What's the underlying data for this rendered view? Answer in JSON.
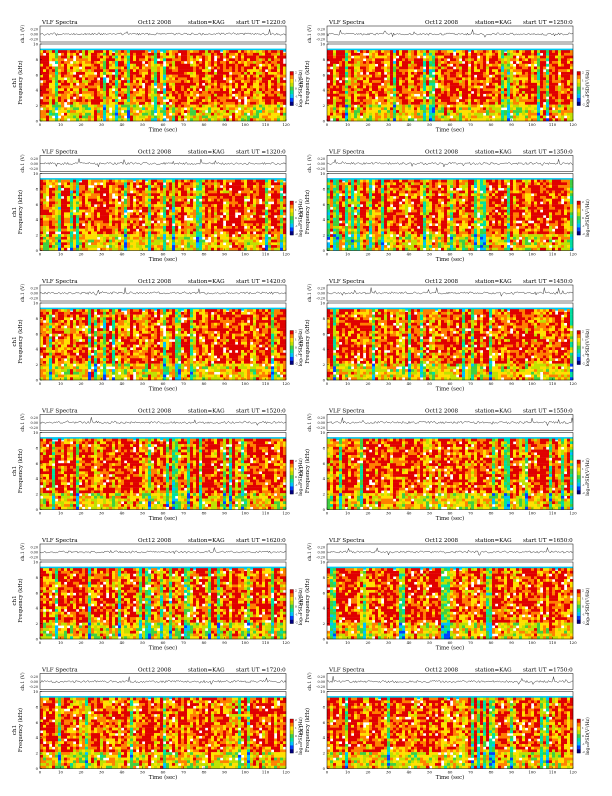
{
  "page_title": "VLF Spectra panels, KAG, Oct 12 2008",
  "colorscale": {
    "stops": [
      "#000080",
      "#0040ff",
      "#00c0ff",
      "#00e0a0",
      "#40d040",
      "#c0e000",
      "#ffe000",
      "#ff8000",
      "#e00000"
    ],
    "ticks": [
      "2",
      "1",
      "0",
      "-1",
      "-2"
    ],
    "label": "log₁₀PSD(V²/Hz)"
  },
  "chart_data": [
    {
      "type": "heatmap",
      "header": {
        "title": "VLF Spectra",
        "date": "Oct12 2008",
        "station": "station=KAG",
        "start": "start UT =1220:0"
      },
      "wave_label": "ch.1 (V)",
      "wave_yticks": [
        "0.20",
        "0.00",
        "-0.20"
      ],
      "ylabel": "Frequency (kHz)",
      "channel": "ch1",
      "xlabel": "Time (sec)",
      "xticks": [
        "0",
        "10",
        "20",
        "30",
        "40",
        "50",
        "60",
        "70",
        "80",
        "90",
        "100",
        "110",
        "120"
      ],
      "yticks": [
        "0",
        "2",
        "4",
        "6",
        "8",
        "10"
      ],
      "xlim": [
        0,
        120
      ],
      "ylim": [
        0,
        10
      ]
    },
    {
      "type": "heatmap",
      "header": {
        "title": "VLF Spectra",
        "date": "Oct12 2008",
        "station": "station=KAG",
        "start": "start UT =1250:0"
      },
      "wave_label": "ch.1 (V)",
      "wave_yticks": [
        "0.20",
        "0.00",
        "-0.20"
      ],
      "ylabel": "Frequency (kHz)",
      "channel": "ch1",
      "xlabel": "Time (sec)",
      "xticks": [
        "0",
        "10",
        "20",
        "30",
        "40",
        "50",
        "60",
        "70",
        "80",
        "90",
        "100",
        "110",
        "120"
      ],
      "yticks": [
        "0",
        "2",
        "4",
        "6",
        "8",
        "10"
      ],
      "xlim": [
        0,
        120
      ],
      "ylim": [
        0,
        10
      ]
    },
    {
      "type": "heatmap",
      "header": {
        "title": "VLF Spectra",
        "date": "Oct12 2008",
        "station": "station=KAG",
        "start": "start UT =1320:0"
      },
      "wave_label": "ch.1 (V)",
      "wave_yticks": [
        "0.20",
        "0.00",
        "-0.20"
      ],
      "ylabel": "Frequency (kHz)",
      "channel": "ch1",
      "xlabel": "Time (sec)",
      "xticks": [
        "0",
        "10",
        "20",
        "30",
        "40",
        "50",
        "60",
        "70",
        "80",
        "90",
        "100",
        "110",
        "120"
      ],
      "yticks": [
        "0",
        "2",
        "4",
        "6",
        "8",
        "10"
      ],
      "xlim": [
        0,
        120
      ],
      "ylim": [
        0,
        10
      ]
    },
    {
      "type": "heatmap",
      "header": {
        "title": "VLF Spectra",
        "date": "Oct12 2008",
        "station": "station=KAG",
        "start": "start UT =1350:0"
      },
      "wave_label": "ch.1 (V)",
      "wave_yticks": [
        "0.20",
        "0.00",
        "-0.20"
      ],
      "ylabel": "Frequency (kHz)",
      "channel": "ch1",
      "xlabel": "Time (sec)",
      "xticks": [
        "0",
        "10",
        "20",
        "30",
        "40",
        "50",
        "60",
        "70",
        "80",
        "90",
        "100",
        "110",
        "120"
      ],
      "yticks": [
        "0",
        "2",
        "4",
        "6",
        "8",
        "10"
      ],
      "xlim": [
        0,
        120
      ],
      "ylim": [
        0,
        10
      ]
    },
    {
      "type": "heatmap",
      "header": {
        "title": "VLF Spectra",
        "date": "Oct12 2008",
        "station": "station=KAG",
        "start": "start UT =1420:0"
      },
      "wave_label": "ch.1 (V)",
      "wave_yticks": [
        "0.20",
        "0.00",
        "-0.20"
      ],
      "ylabel": "Frequency (kHz)",
      "channel": "ch1",
      "xlabel": "Time (sec)",
      "xticks": [
        "0",
        "10",
        "20",
        "30",
        "40",
        "50",
        "60",
        "70",
        "80",
        "90",
        "100",
        "110",
        "120"
      ],
      "yticks": [
        "0",
        "2",
        "4",
        "6",
        "8",
        "10"
      ],
      "xlim": [
        0,
        120
      ],
      "ylim": [
        0,
        10
      ]
    },
    {
      "type": "heatmap",
      "header": {
        "title": "VLF Spectra",
        "date": "Oct12 2008",
        "station": "station=KAG",
        "start": "start UT =1450:0"
      },
      "wave_label": "ch.1 (V)",
      "wave_yticks": [
        "0.20",
        "0.00",
        "-0.20"
      ],
      "ylabel": "Frequency (kHz)",
      "channel": "ch1",
      "xlabel": "Time (sec)",
      "xticks": [
        "0",
        "10",
        "20",
        "30",
        "40",
        "50",
        "60",
        "70",
        "80",
        "90",
        "100",
        "110",
        "120"
      ],
      "yticks": [
        "0",
        "2",
        "4",
        "6",
        "8",
        "10"
      ],
      "xlim": [
        0,
        120
      ],
      "ylim": [
        0,
        10
      ]
    },
    {
      "type": "heatmap",
      "header": {
        "title": "VLF Spectra",
        "date": "Oct12 2008",
        "station": "station=KAG",
        "start": "start UT =1520:0"
      },
      "wave_label": "ch.1 (V)",
      "wave_yticks": [
        "0.20",
        "0.00",
        "-0.20"
      ],
      "ylabel": "Frequency (kHz)",
      "channel": "ch1",
      "xlabel": "Time (sec)",
      "xticks": [
        "0",
        "10",
        "20",
        "30",
        "40",
        "50",
        "60",
        "70",
        "80",
        "90",
        "100",
        "110",
        "120"
      ],
      "yticks": [
        "0",
        "2",
        "4",
        "6",
        "8",
        "10"
      ],
      "xlim": [
        0,
        120
      ],
      "ylim": [
        0,
        10
      ]
    },
    {
      "type": "heatmap",
      "header": {
        "title": "VLF Spectra",
        "date": "Oct12 2008",
        "station": "station=KAG",
        "start": "start UT =1550:0"
      },
      "wave_label": "ch.1 (V)",
      "wave_yticks": [
        "0.20",
        "0.00",
        "-0.20"
      ],
      "ylabel": "Frequency (kHz)",
      "channel": "ch1",
      "xlabel": "Time (sec)",
      "xticks": [
        "0",
        "10",
        "20",
        "30",
        "40",
        "50",
        "60",
        "70",
        "80",
        "90",
        "100",
        "110",
        "120"
      ],
      "yticks": [
        "0",
        "2",
        "4",
        "6",
        "8",
        "10"
      ],
      "xlim": [
        0,
        120
      ],
      "ylim": [
        0,
        10
      ]
    },
    {
      "type": "heatmap",
      "header": {
        "title": "VLF Spectra",
        "date": "Oct12 2008",
        "station": "station=KAG",
        "start": "start UT =1620:0"
      },
      "wave_label": "ch.1 (V)",
      "wave_yticks": [
        "0.20",
        "0.00",
        "-0.20"
      ],
      "ylabel": "Frequency (kHz)",
      "channel": "ch1",
      "xlabel": "Time (sec)",
      "xticks": [
        "0",
        "10",
        "20",
        "30",
        "40",
        "50",
        "60",
        "70",
        "80",
        "90",
        "100",
        "110",
        "120"
      ],
      "yticks": [
        "0",
        "2",
        "4",
        "6",
        "8",
        "10"
      ],
      "xlim": [
        0,
        120
      ],
      "ylim": [
        0,
        10
      ]
    },
    {
      "type": "heatmap",
      "header": {
        "title": "VLF Spectra",
        "date": "Oct12 2008",
        "station": "station=KAG",
        "start": "start UT =1650:0"
      },
      "wave_label": "ch.1 (V)",
      "wave_yticks": [
        "0.20",
        "0.00",
        "-0.20"
      ],
      "ylabel": "Frequency (kHz)",
      "channel": "ch1",
      "xlabel": "Time (sec)",
      "xticks": [
        "0",
        "10",
        "20",
        "30",
        "40",
        "50",
        "60",
        "70",
        "80",
        "90",
        "100",
        "110",
        "120"
      ],
      "yticks": [
        "0",
        "2",
        "4",
        "6",
        "8",
        "10"
      ],
      "xlim": [
        0,
        120
      ],
      "ylim": [
        0,
        10
      ]
    },
    {
      "type": "heatmap",
      "header": {
        "title": "VLF Spectra",
        "date": "Oct12 2008",
        "station": "station=KAG",
        "start": "start UT =1720:0"
      },
      "wave_label": "ch.1 (V)",
      "wave_yticks": [
        "0.20",
        "0.00",
        "-0.20"
      ],
      "ylabel": "Frequency (kHz)",
      "channel": "ch1",
      "xlabel": "Time (sec)",
      "xticks": [
        "0",
        "10",
        "20",
        "30",
        "40",
        "50",
        "60",
        "70",
        "80",
        "90",
        "100",
        "110",
        "120"
      ],
      "yticks": [
        "0",
        "2",
        "4",
        "6",
        "8",
        "10"
      ],
      "xlim": [
        0,
        120
      ],
      "ylim": [
        0,
        10
      ]
    },
    {
      "type": "heatmap",
      "header": {
        "title": "VLF Spectra",
        "date": "Oct12 2008",
        "station": "station=KAG",
        "start": "start UT =1750:0"
      },
      "wave_label": "ch.1 (V)",
      "wave_yticks": [
        "0.20",
        "0.00",
        "-0.20"
      ],
      "ylabel": "Frequency (kHz)",
      "channel": "ch1",
      "xlabel": "Time (sec)",
      "xticks": [
        "0",
        "10",
        "20",
        "30",
        "40",
        "50",
        "60",
        "70",
        "80",
        "90",
        "100",
        "110",
        "120"
      ],
      "yticks": [
        "0",
        "2",
        "4",
        "6",
        "8",
        "10"
      ],
      "xlim": [
        0,
        120
      ],
      "ylim": [
        0,
        10
      ]
    }
  ]
}
